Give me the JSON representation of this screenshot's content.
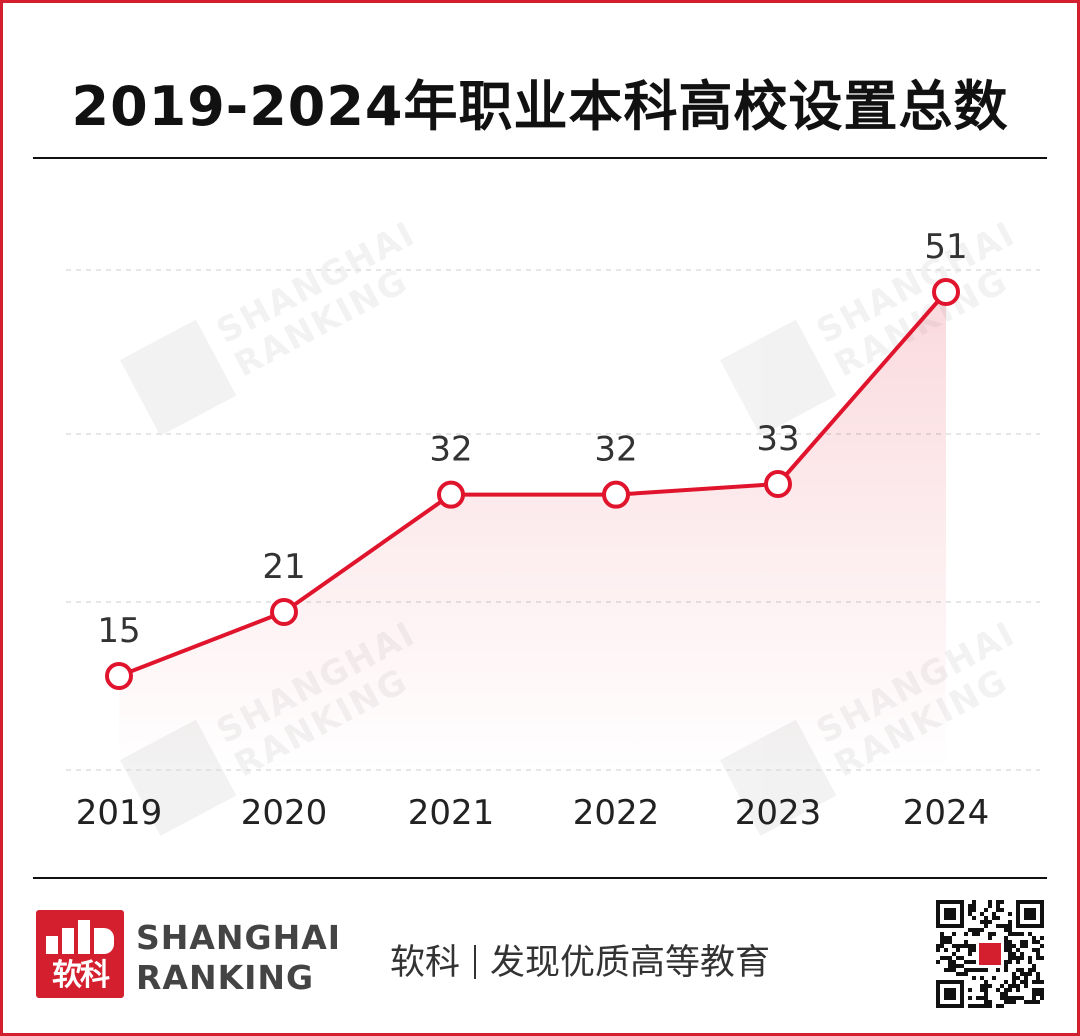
{
  "title": "2019-2024年职业本科高校设置总数",
  "watermark": {
    "line1": "SHANGHAI",
    "line2": "RANKING"
  },
  "footer": {
    "brand_line1": "SHANGHAI",
    "brand_line2": "RANKING",
    "logo_text": "软科",
    "slogan_name": "软科",
    "slogan_text": "发现优质高等教育",
    "qr_icon": "qr-code-icon"
  },
  "colors": {
    "accent": "#d4202e",
    "line": "#e0142c",
    "text": "#333333",
    "grid": "#dddddd"
  },
  "chart_data": {
    "type": "line",
    "title": "2019-2024年职业本科高校设置总数",
    "categories": [
      "2019",
      "2020",
      "2021",
      "2022",
      "2023",
      "2024"
    ],
    "values": [
      15,
      21,
      32,
      32,
      33,
      51
    ],
    "data_labels": [
      "15",
      "21",
      "32",
      "32",
      "33",
      "51"
    ],
    "xlabel": "",
    "ylabel": "",
    "ylim": [
      6,
      54
    ],
    "grid": true,
    "legend": "none"
  }
}
